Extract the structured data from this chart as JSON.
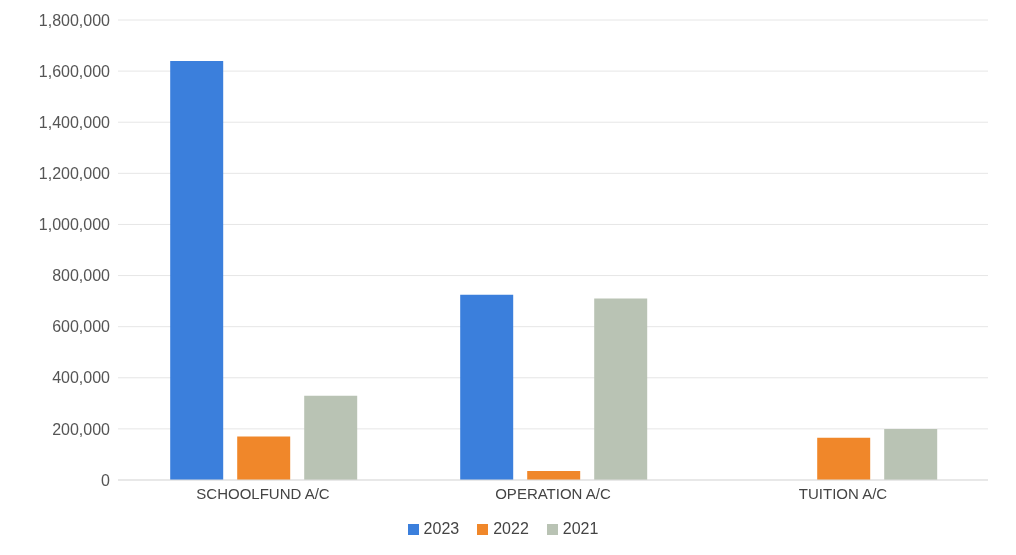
{
  "chart_data": {
    "type": "bar",
    "categories": [
      "SCHOOLFUND A/C",
      "OPERATION A/C",
      "TUITION A/C"
    ],
    "series": [
      {
        "name": "2023",
        "color": "#3b7fdc",
        "values": [
          1640000,
          725000,
          0
        ]
      },
      {
        "name": "2022",
        "color": "#f0872a",
        "values": [
          170000,
          35000,
          165000
        ]
      },
      {
        "name": "2021",
        "color": "#b9c3b4",
        "values": [
          330000,
          710000,
          200000
        ]
      }
    ],
    "ylim": [
      0,
      1800000
    ],
    "yticks": [
      0,
      {
        "value": 200000,
        "label": "200,000"
      },
      {
        "value": 400000,
        "label": "400,000"
      },
      {
        "value": 600000,
        "label": "600,000"
      },
      {
        "value": 800000,
        "label": "800,000"
      },
      {
        "value": 1000000,
        "label": "1,000,000"
      },
      {
        "value": 1200000,
        "label": "1,200,000"
      },
      {
        "value": 1400000,
        "label": "1,400,000"
      },
      {
        "value": 1600000,
        "label": "1,600,000"
      },
      {
        "value": 1800000,
        "label": "1,800,000"
      }
    ],
    "grid": "y",
    "legend": "bottom"
  }
}
